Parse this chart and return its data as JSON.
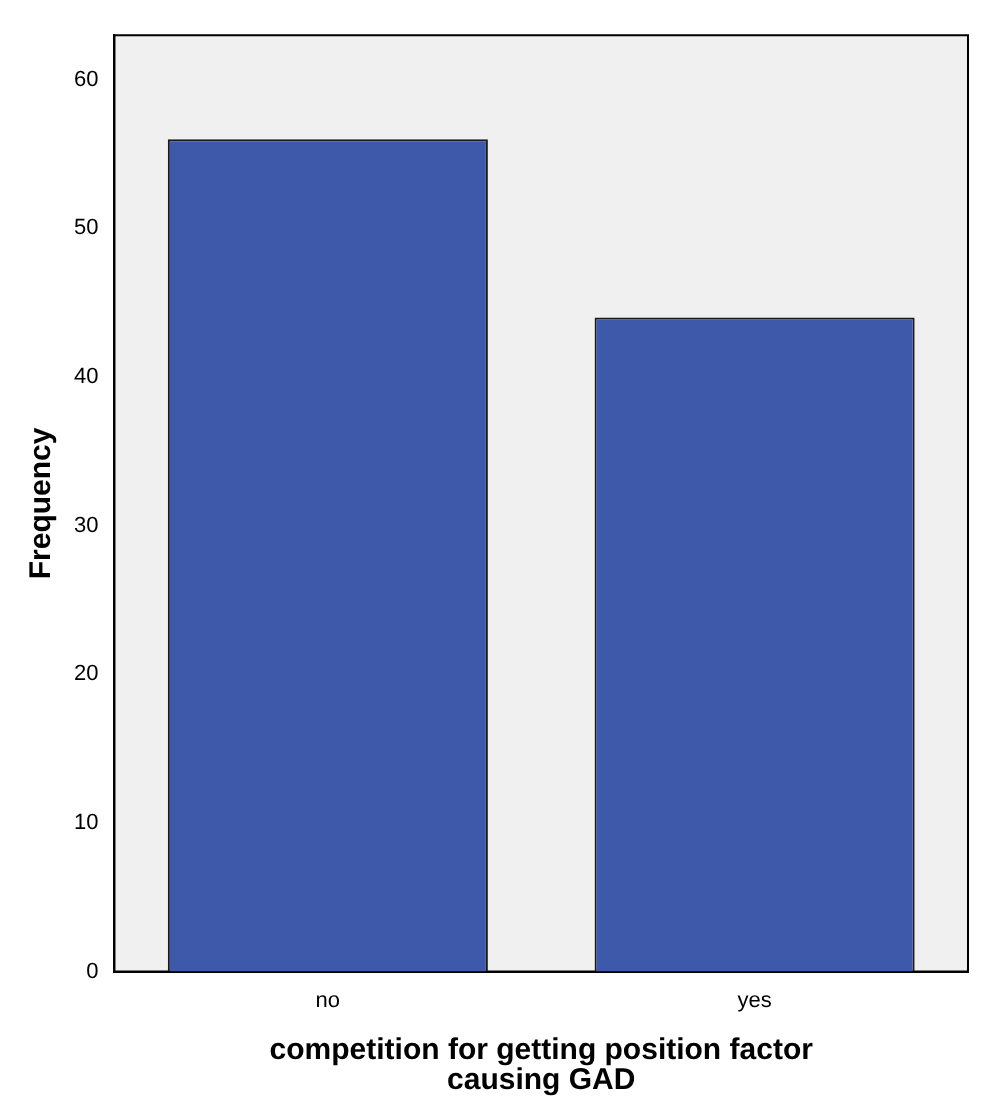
{
  "chart_data": {
    "type": "bar",
    "xlabel": "competition for getting position factor causing GAD",
    "ylabel": "Frequency",
    "categories": [
      "no",
      "yes"
    ],
    "values": [
      56,
      44
    ],
    "color": "#3e58aa",
    "ylim": [
      0,
      63
    ],
    "yticks": [
      0,
      10,
      20,
      30,
      40,
      50,
      60
    ],
    "grid": false,
    "legend": false
  }
}
